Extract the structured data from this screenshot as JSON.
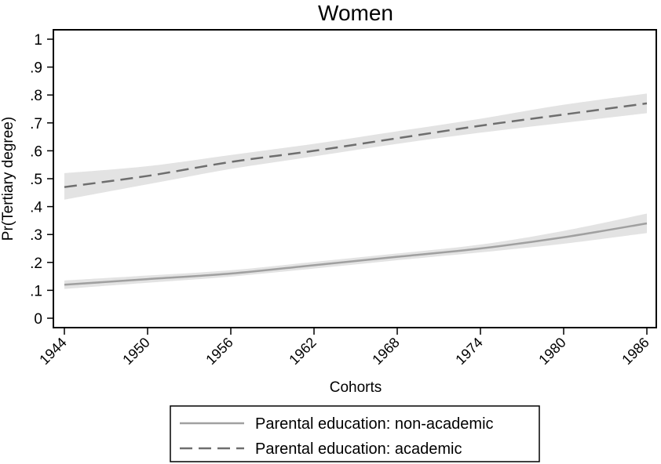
{
  "chart_data": {
    "type": "line",
    "title": "Women",
    "xlabel": "Cohorts",
    "ylabel": "Pr(Tertiary degree)",
    "xlim": [
      1944,
      1986
    ],
    "ylim": [
      0,
      1
    ],
    "x_ticks": [
      1944,
      1950,
      1956,
      1962,
      1968,
      1974,
      1980,
      1986
    ],
    "x_tick_labels": [
      "1944",
      "1950",
      "1956",
      "1962",
      "1968",
      "1974",
      "1980",
      "1986"
    ],
    "y_ticks": [
      0,
      0.1,
      0.2,
      0.3,
      0.4,
      0.5,
      0.6,
      0.7,
      0.8,
      0.9,
      1
    ],
    "y_tick_labels": [
      "0",
      ".1",
      ".2",
      ".3",
      ".4",
      ".5",
      ".6",
      ".7",
      ".8",
      ".9",
      "1"
    ],
    "grid": false,
    "legend_position": "bottom",
    "series": [
      {
        "name": "Parental education: non-academic",
        "style": "solid",
        "color": "#a0a0a0",
        "x": [
          1944,
          1950,
          1956,
          1962,
          1968,
          1974,
          1980,
          1986
        ],
        "y": [
          0.12,
          0.14,
          0.16,
          0.19,
          0.22,
          0.25,
          0.29,
          0.34
        ],
        "ci_lower": [
          0.105,
          0.127,
          0.149,
          0.178,
          0.208,
          0.236,
          0.267,
          0.305
        ],
        "ci_upper": [
          0.135,
          0.153,
          0.172,
          0.202,
          0.232,
          0.264,
          0.313,
          0.375
        ]
      },
      {
        "name": "Parental education: academic",
        "style": "dashed",
        "color": "#6e6e6e",
        "x": [
          1944,
          1950,
          1956,
          1962,
          1968,
          1974,
          1980,
          1986
        ],
        "y": [
          0.47,
          0.51,
          0.56,
          0.6,
          0.645,
          0.69,
          0.73,
          0.77
        ],
        "ci_lower": [
          0.425,
          0.48,
          0.535,
          0.58,
          0.625,
          0.665,
          0.7,
          0.735
        ],
        "ci_upper": [
          0.52,
          0.545,
          0.585,
          0.625,
          0.67,
          0.715,
          0.765,
          0.805
        ]
      }
    ]
  },
  "colors": {
    "band": "#e3e3e3",
    "frame": "#000000"
  }
}
